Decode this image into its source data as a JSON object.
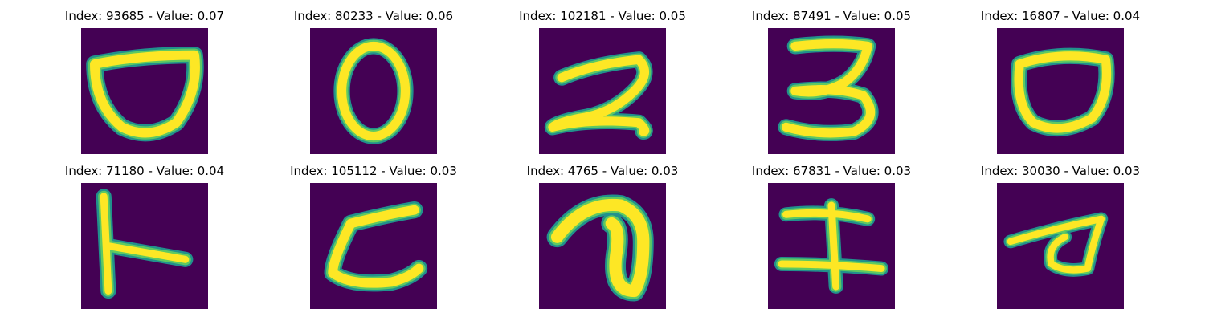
{
  "colors": {
    "background": "#440154",
    "stroke_mid": "#21918c",
    "stroke_light": "#5ec962",
    "stroke_core": "#fde725"
  },
  "panels": [
    {
      "title": "Index: 93685 - Value: 0.07",
      "glyph": "rounded bowl shape"
    },
    {
      "title": "Index: 80233 - Value: 0.06",
      "glyph": "oval ring"
    },
    {
      "title": "Index: 102181 - Value: 0.05",
      "glyph": "handwritten 2"
    },
    {
      "title": "Index: 87491 - Value: 0.05",
      "glyph": "handwritten 3"
    },
    {
      "title": "Index: 16807 - Value: 0.04",
      "glyph": "rounded ring"
    },
    {
      "title": "Index: 71180 - Value: 0.04",
      "glyph": "rotated T shape"
    },
    {
      "title": "Index: 105112 - Value: 0.03",
      "glyph": "rotated C shape"
    },
    {
      "title": "Index: 4765 - Value: 0.03",
      "glyph": "hook shape"
    },
    {
      "title": "Index: 67831 - Value: 0.03",
      "glyph": "I-beam shape"
    },
    {
      "title": "Index: 30030 - Value: 0.03",
      "glyph": "loop with tail"
    }
  ]
}
